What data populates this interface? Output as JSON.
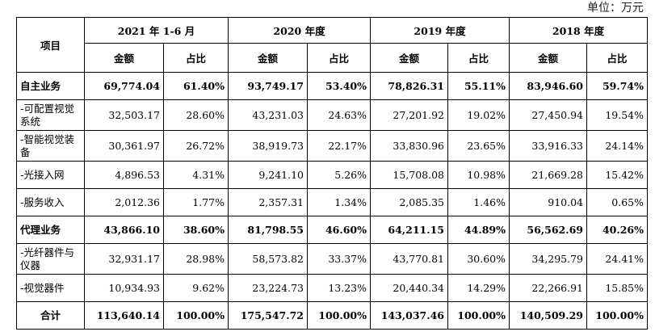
{
  "unit_label": "单位：万元",
  "header": {
    "item": "项目",
    "periods": [
      "2021 年 1-6 月",
      "2020 年度",
      "2019 年度",
      "2018 年度"
    ],
    "amount": "金额",
    "ratio": "占比"
  },
  "rows": [
    {
      "label": "自主业务",
      "values": [
        "69,774.04",
        "61.40%",
        "93,749.17",
        "53.40%",
        "78,826.31",
        "55.11%",
        "83,946.60",
        "59.74%"
      ]
    },
    {
      "label": "-可配置视觉系统",
      "values": [
        "32,503.17",
        "28.60%",
        "43,231.03",
        "24.63%",
        "27,201.92",
        "19.02%",
        "27,450.94",
        "19.54%"
      ]
    },
    {
      "label": "-智能视觉装备",
      "values": [
        "30,361.97",
        "26.72%",
        "38,919.73",
        "22.17%",
        "33,830.96",
        "23.65%",
        "33,916.33",
        "24.14%"
      ]
    },
    {
      "label": "-光接入网",
      "values": [
        "4,896.53",
        "4.31%",
        "9,241.10",
        "5.26%",
        "15,708.08",
        "10.98%",
        "21,669.28",
        "15.42%"
      ]
    },
    {
      "label": "-服务收入",
      "values": [
        "2,012.36",
        "1.77%",
        "2,357.31",
        "1.34%",
        "2,085.35",
        "1.46%",
        "910.04",
        "0.65%"
      ]
    },
    {
      "label": "代理业务",
      "values": [
        "43,866.10",
        "38.60%",
        "81,798.55",
        "46.60%",
        "64,211.15",
        "44.89%",
        "56,562.69",
        "40.26%"
      ]
    },
    {
      "label": "-光纤器件与仪器",
      "values": [
        "32,931.17",
        "28.98%",
        "58,573.82",
        "33.37%",
        "43,770.81",
        "30.60%",
        "34,295.79",
        "24.41%"
      ]
    },
    {
      "label": "-视觉器件",
      "values": [
        "10,934.93",
        "9.62%",
        "23,224.73",
        "13.23%",
        "20,440.34",
        "14.29%",
        "22,266.91",
        "15.85%"
      ]
    },
    {
      "label": "合计",
      "values": [
        "113,640.14",
        "100.00%",
        "175,547.72",
        "100.00%",
        "143,037.46",
        "100.00%",
        "140,509.29",
        "100.00%"
      ]
    }
  ]
}
